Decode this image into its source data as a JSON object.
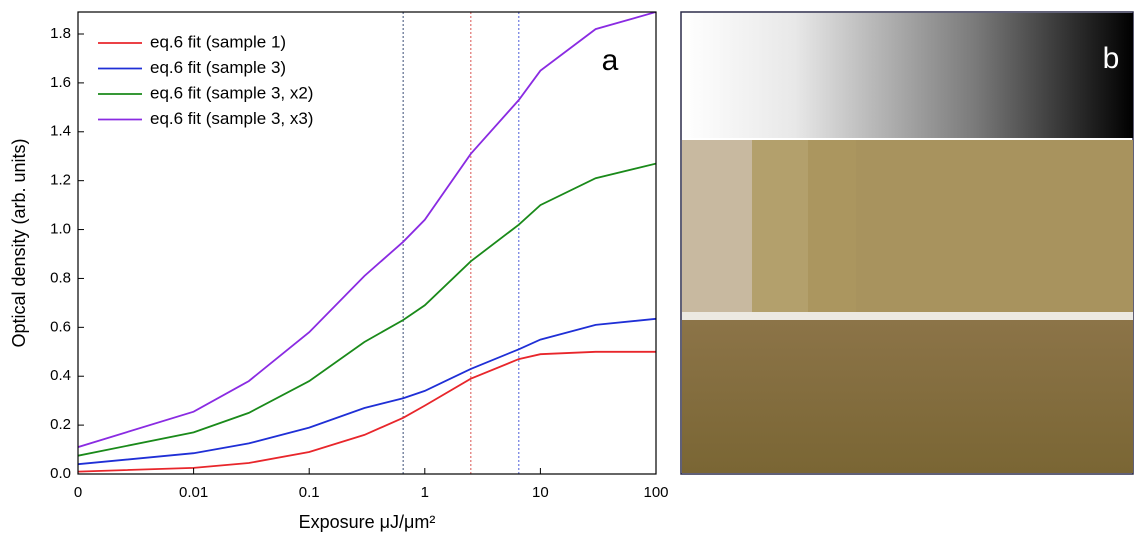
{
  "chart_data": {
    "type": "line",
    "xlabel": "Exposure μJ/μm²",
    "ylabel": "Optical density (arb. units)",
    "panel_labels": [
      "a",
      "b"
    ],
    "xscale": "symlog",
    "linthresh": 0.01,
    "xlim": [
      0,
      100
    ],
    "xticks": [
      0,
      0.01,
      0.1,
      1,
      10,
      100
    ],
    "ylim": [
      0,
      1.89
    ],
    "yticks": [
      {
        "value": 0,
        "label": "0.0"
      },
      0.2,
      0.4,
      0.6,
      0.8,
      {
        "value": 1,
        "label": "1.0"
      },
      1.2,
      1.4,
      1.6,
      1.8
    ],
    "x": [
      0,
      0.01,
      0.03,
      0.1,
      0.3,
      0.65,
      1,
      2.5,
      6.5,
      10,
      30,
      100
    ],
    "series": [
      {
        "name": "eq.6 fit (sample 1)",
        "color": "#e8262b",
        "values": [
          0.01,
          0.025,
          0.045,
          0.09,
          0.16,
          0.23,
          0.28,
          0.39,
          0.47,
          0.49,
          0.5,
          0.5
        ]
      },
      {
        "name": "eq.6 fit (sample 3)",
        "color": "#1f2fd6",
        "values": [
          0.04,
          0.085,
          0.125,
          0.19,
          0.27,
          0.31,
          0.34,
          0.43,
          0.51,
          0.55,
          0.61,
          0.635
        ]
      },
      {
        "name": "eq.6 fit (sample 3, x2)",
        "color": "#1a8a1a",
        "values": [
          0.075,
          0.17,
          0.25,
          0.38,
          0.54,
          0.63,
          0.69,
          0.87,
          1.02,
          1.1,
          1.21,
          1.27
        ]
      },
      {
        "name": "eq.6 fit (sample 3, x3)",
        "color": "#8a2be2",
        "values": [
          0.11,
          0.255,
          0.38,
          0.58,
          0.81,
          0.95,
          1.04,
          1.31,
          1.53,
          1.65,
          1.82,
          1.89
        ]
      }
    ],
    "vlines": [
      {
        "value": 0.65,
        "color": "#5a6b8c"
      },
      {
        "value": 2.5,
        "color": "#e0706e"
      },
      {
        "value": 6.5,
        "color": "#6a78e0"
      }
    ]
  }
}
